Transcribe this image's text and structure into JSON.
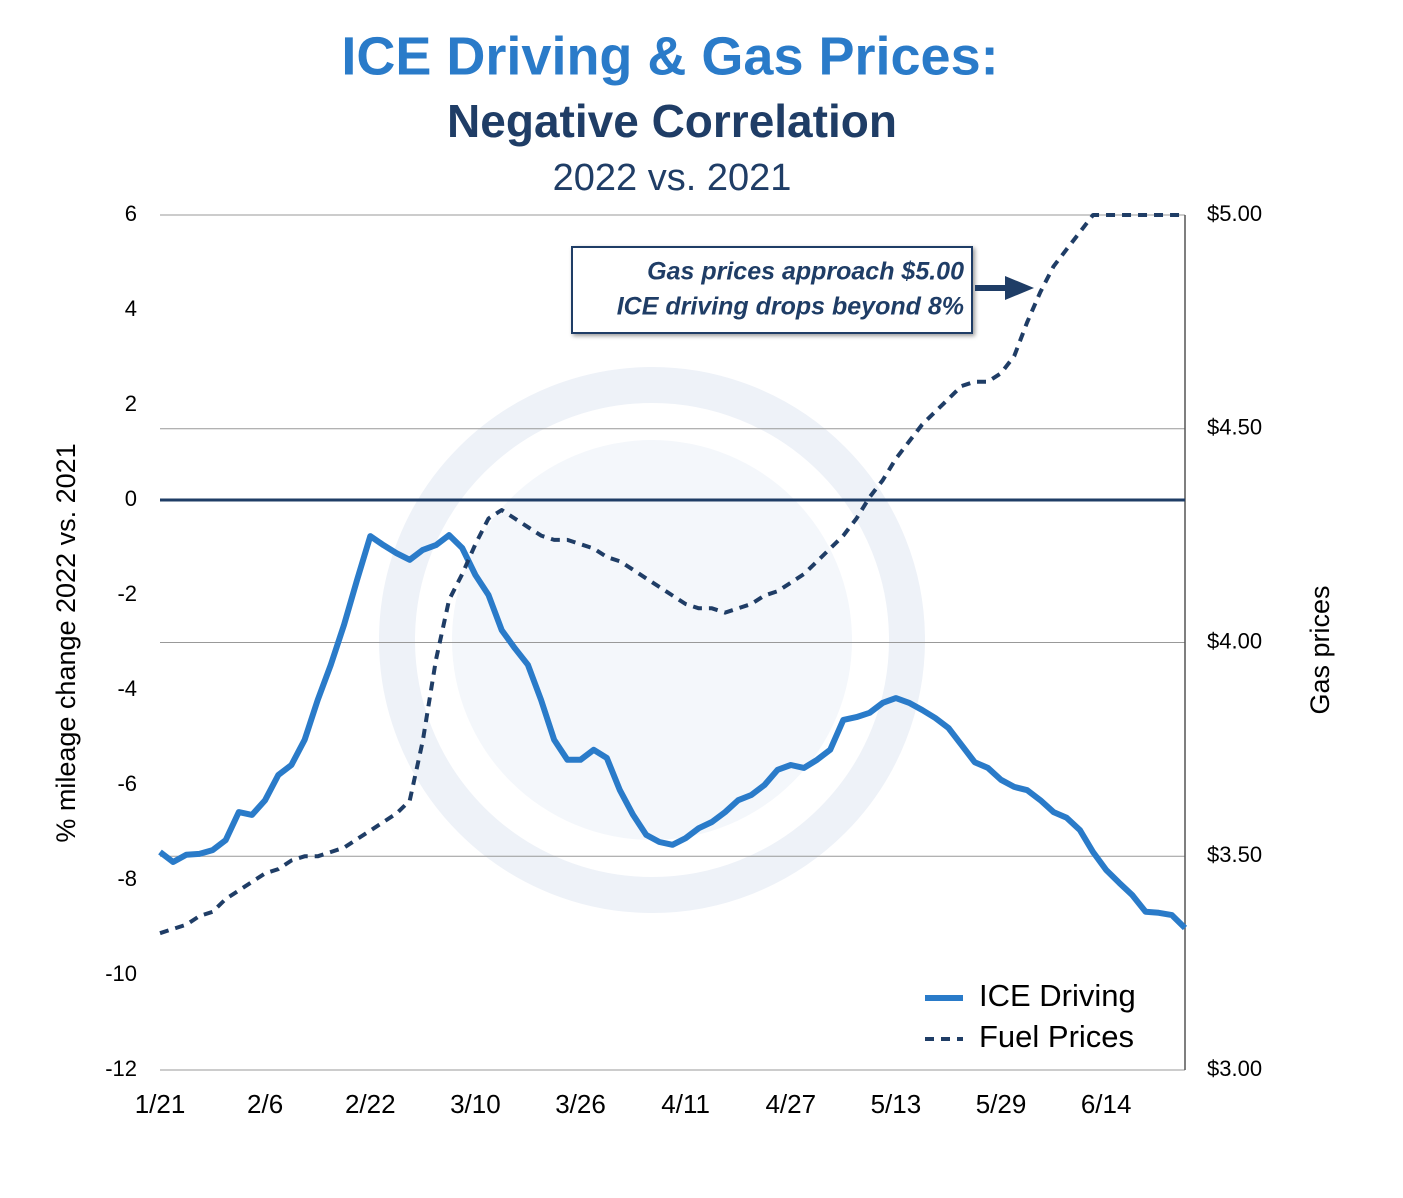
{
  "chart_data": {
    "type": "line",
    "titles": [
      "ICE Driving & Gas Prices:",
      "Negative Correlation",
      "2022 vs. 2021"
    ],
    "ylabel": "% mileage change 2022 vs. 2021",
    "y2label": "Gas prices",
    "annotation": [
      "Gas prices approach $5.00",
      "ICE driving drops beyond 8%"
    ],
    "categories": [
      "1/21",
      null,
      null,
      null,
      null,
      null,
      null,
      null,
      "2/6",
      null,
      null,
      null,
      null,
      null,
      null,
      null,
      "2/22",
      null,
      null,
      null,
      null,
      null,
      null,
      null,
      "3/10",
      null,
      null,
      null,
      null,
      null,
      null,
      null,
      "3/26",
      null,
      null,
      null,
      null,
      null,
      null,
      null,
      "4/11",
      null,
      null,
      null,
      null,
      null,
      null,
      null,
      "4/27",
      null,
      null,
      null,
      null,
      null,
      null,
      null,
      "5/13",
      null,
      null,
      null,
      null,
      null,
      null,
      null,
      "5/29",
      null,
      null,
      null,
      null,
      null,
      null,
      null,
      "6/14",
      null,
      null,
      null,
      null,
      null,
      null
    ],
    "series": [
      {
        "name": "ICE Driving",
        "color": "#2a7bc9",
        "style": "solid",
        "axis": "y",
        "values": [
          -7.41,
          -7.62,
          -7.47,
          -7.45,
          -7.37,
          -7.16,
          -6.57,
          -6.63,
          -6.32,
          -5.79,
          -5.58,
          -5.05,
          -4.21,
          -3.47,
          -2.63,
          -1.68,
          -0.76,
          -0.95,
          -1.12,
          -1.26,
          -1.05,
          -0.95,
          -0.74,
          -1.01,
          -1.58,
          -2.0,
          -2.74,
          -3.12,
          -3.47,
          -4.21,
          -5.05,
          -5.47,
          -5.47,
          -5.26,
          -5.43,
          -6.11,
          -6.63,
          -7.05,
          -7.2,
          -7.26,
          -7.12,
          -6.91,
          -6.78,
          -6.57,
          -6.32,
          -6.21,
          -6.0,
          -5.68,
          -5.58,
          -5.64,
          -5.47,
          -5.26,
          -4.63,
          -4.57,
          -4.48,
          -4.27,
          -4.17,
          -4.27,
          -4.42,
          -4.59,
          -4.8,
          -5.16,
          -5.52,
          -5.64,
          -5.89,
          -6.04,
          -6.11,
          -6.32,
          -6.57,
          -6.69,
          -6.95,
          -7.41,
          -7.79,
          -8.06,
          -8.32,
          -8.67,
          -8.69,
          -8.74,
          -9.01
        ]
      },
      {
        "name": "Fuel Prices",
        "color": "#1f3d66",
        "style": "dashed",
        "axis": "y2",
        "values": [
          3.32,
          3.33,
          3.34,
          3.36,
          3.37,
          3.4,
          3.42,
          3.44,
          3.46,
          3.47,
          3.49,
          3.5,
          3.5,
          3.51,
          3.52,
          3.54,
          3.56,
          3.58,
          3.6,
          3.63,
          3.77,
          3.96,
          4.1,
          4.16,
          4.23,
          4.29,
          4.31,
          4.29,
          4.27,
          4.25,
          4.24,
          4.24,
          4.23,
          4.22,
          4.2,
          4.19,
          4.17,
          4.15,
          4.13,
          4.11,
          4.09,
          4.08,
          4.08,
          4.07,
          4.08,
          4.09,
          4.11,
          4.12,
          4.14,
          4.16,
          4.19,
          4.22,
          4.25,
          4.29,
          4.34,
          4.38,
          4.43,
          4.47,
          4.51,
          4.54,
          4.57,
          4.6,
          4.61,
          4.61,
          4.63,
          4.67,
          4.75,
          4.82,
          4.88,
          4.92,
          4.96,
          5.0,
          5.0,
          5.0,
          5.0,
          5.0,
          5.0,
          5.0,
          5.0
        ]
      }
    ],
    "ylim": [
      -12,
      6
    ],
    "yticks": [
      6,
      4,
      2,
      0,
      -2,
      -4,
      -6,
      -8,
      -10,
      -12
    ],
    "y2lim": [
      3,
      5
    ],
    "y2ticks": [
      {
        "value": 5,
        "label": "$5.00"
      },
      {
        "value": 4.5,
        "label": "$4.50"
      },
      {
        "value": 4,
        "label": "$4.00"
      },
      {
        "value": 3.5,
        "label": "$3.50"
      },
      {
        "value": 3,
        "label": "$3.00"
      }
    ],
    "grid": true,
    "zero_line": true,
    "legend": "lower right"
  }
}
